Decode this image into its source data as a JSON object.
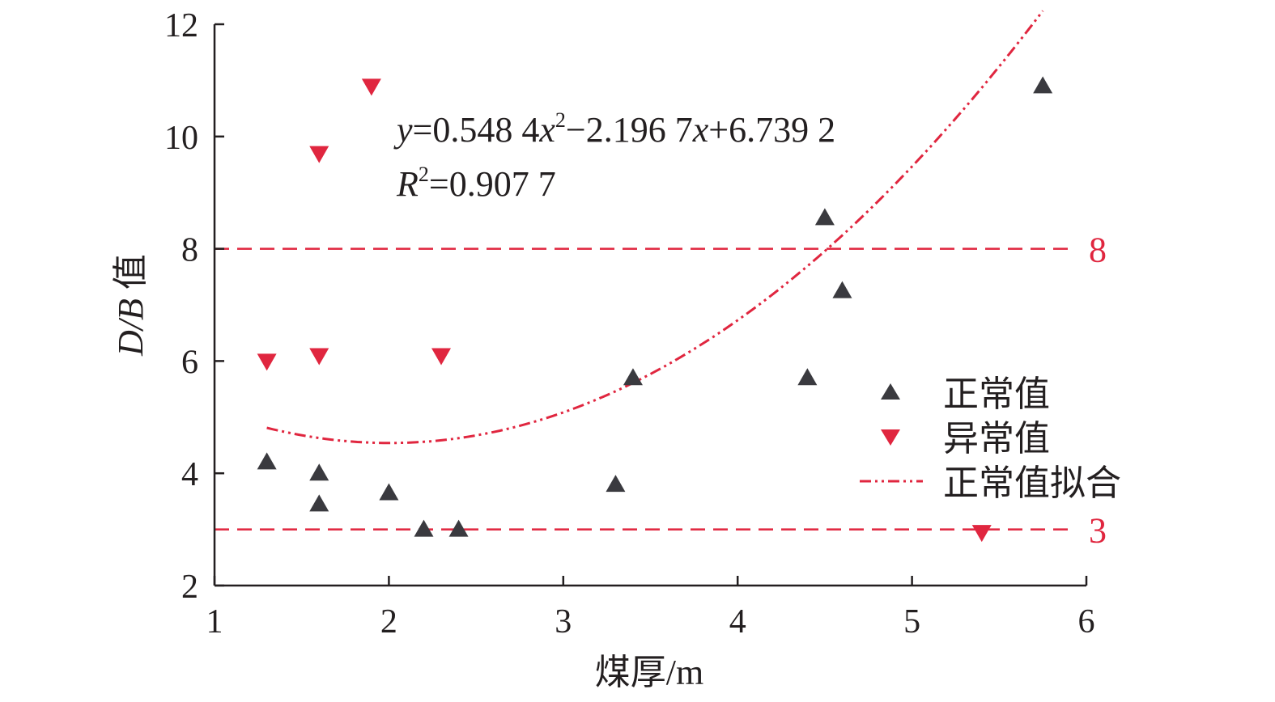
{
  "chart_data": {
    "type": "scatter",
    "xlabel": "煤厚/m",
    "ylabel_italic": "D/B",
    "ylabel_suffix": " 值",
    "xlim": [
      1,
      6
    ],
    "ylim": [
      2,
      12
    ],
    "x_ticks": [
      "1",
      "2",
      "3",
      "4",
      "5",
      "6"
    ],
    "y_ticks": [
      "2",
      "4",
      "6",
      "8",
      "10",
      "12"
    ],
    "grid": false,
    "legend_position": "right-middle",
    "colors": {
      "normal": "#3a3a3f",
      "abnormal": "#e0263f",
      "fit": "#e0263f",
      "reference": "#e0263f",
      "axis": "#231f20"
    },
    "series": [
      {
        "name": "正常值",
        "marker": "triangle-up",
        "points": [
          {
            "x": 1.3,
            "y": 4.2
          },
          {
            "x": 1.6,
            "y": 4.0
          },
          {
            "x": 1.6,
            "y": 3.45
          },
          {
            "x": 2.0,
            "y": 3.65
          },
          {
            "x": 2.2,
            "y": 3.0
          },
          {
            "x": 2.4,
            "y": 3.0
          },
          {
            "x": 3.3,
            "y": 3.8
          },
          {
            "x": 3.4,
            "y": 5.7
          },
          {
            "x": 4.4,
            "y": 5.7
          },
          {
            "x": 4.5,
            "y": 8.55
          },
          {
            "x": 4.6,
            "y": 7.25
          },
          {
            "x": 5.75,
            "y": 10.9
          }
        ]
      },
      {
        "name": "异常值",
        "marker": "triangle-down",
        "points": [
          {
            "x": 1.3,
            "y": 6.0
          },
          {
            "x": 1.6,
            "y": 6.1
          },
          {
            "x": 1.6,
            "y": 9.7
          },
          {
            "x": 1.9,
            "y": 10.9
          },
          {
            "x": 2.3,
            "y": 6.1
          },
          {
            "x": 5.4,
            "y": 2.95
          }
        ]
      }
    ],
    "fit": {
      "name": "正常值拟合",
      "coefficients": {
        "a": 0.5484,
        "b": -2.1967,
        "c": 6.7392
      },
      "x_range": [
        1.3,
        5.75
      ]
    },
    "annotation": {
      "eq_y": "y",
      "eq_part1": "=0.548 4",
      "eq_x1": "x",
      "eq_sup": "2",
      "eq_part2": "−2.196 7",
      "eq_x2": "x",
      "eq_part3": "+6.739 2",
      "r2_R": "R",
      "r2_sup": "2",
      "r2_value": "=0.907 7"
    },
    "reference_lines": [
      {
        "y": 8,
        "label": "8"
      },
      {
        "y": 3,
        "label": "3"
      }
    ]
  }
}
